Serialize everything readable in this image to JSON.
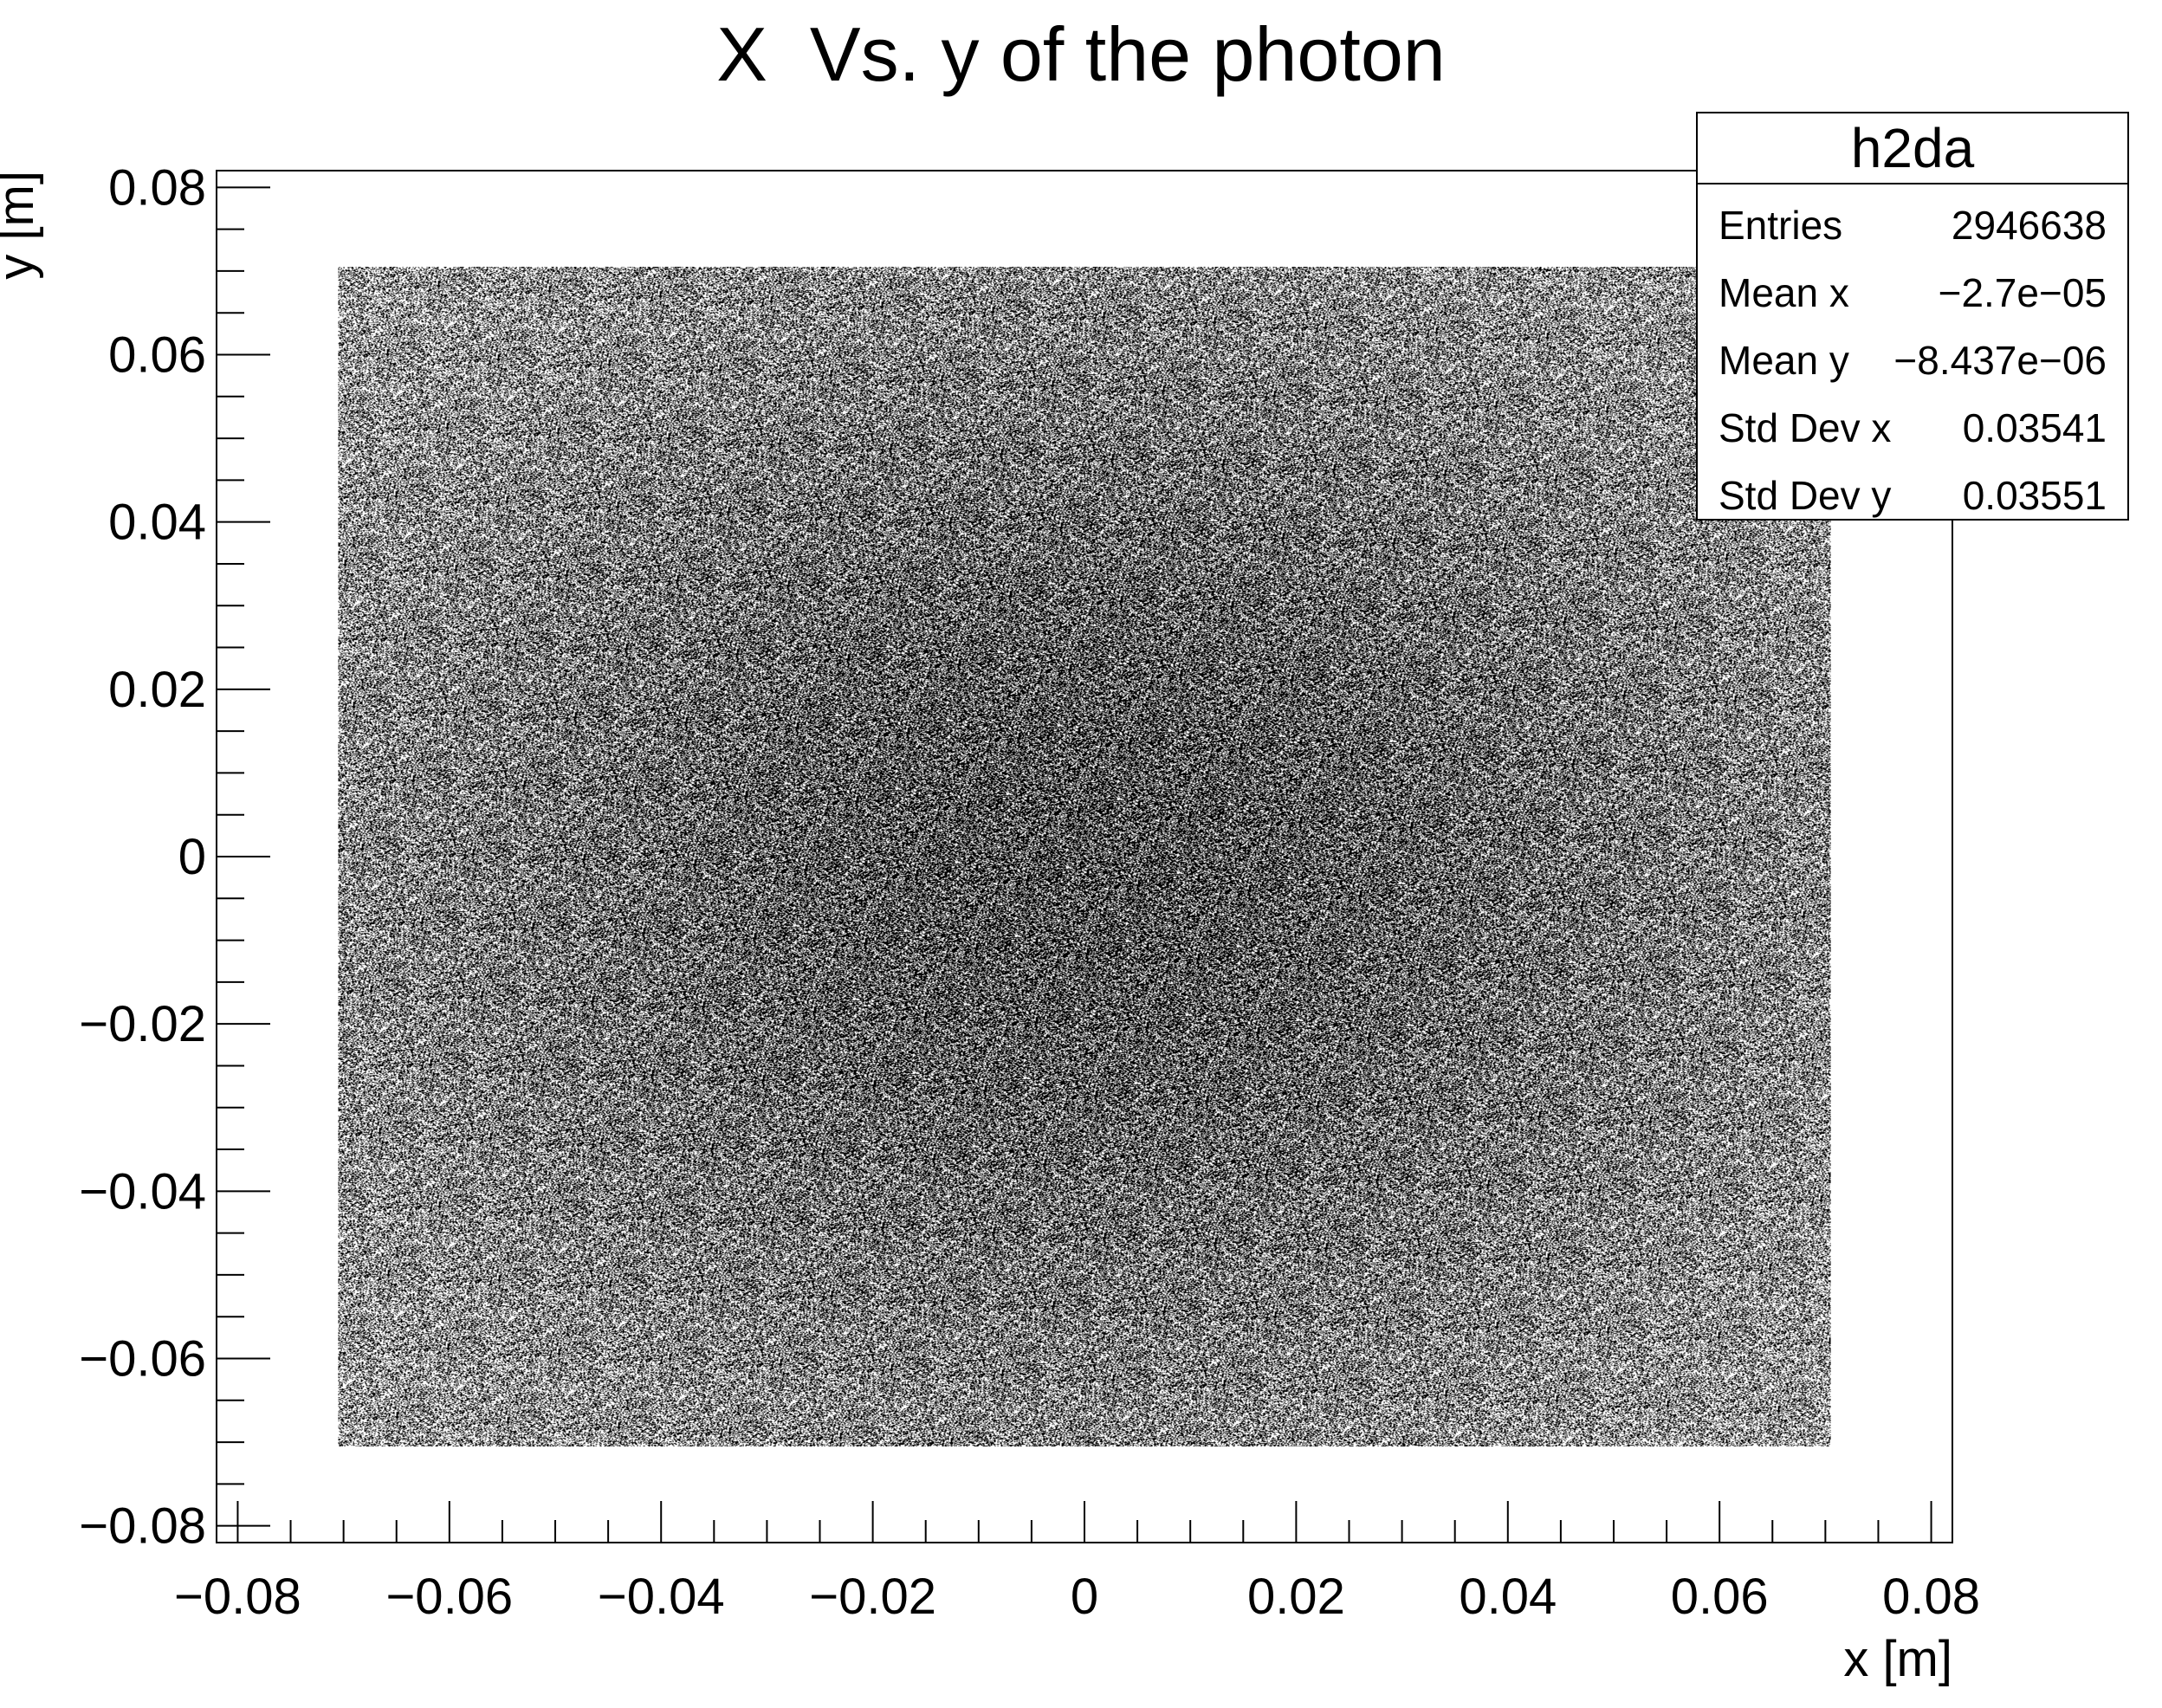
{
  "chart_data": {
    "type": "heatmap",
    "title": "X  Vs. y of the photon",
    "xlabel": "x [m]",
    "ylabel": "y [m]",
    "xlim": [
      -0.082,
      0.082
    ],
    "ylim": [
      -0.082,
      0.082
    ],
    "xticks": [
      -0.08,
      -0.06,
      -0.04,
      -0.02,
      0,
      0.02,
      0.04,
      0.06,
      0.08
    ],
    "yticks": [
      -0.08,
      -0.06,
      -0.04,
      -0.02,
      0,
      0.02,
      0.04,
      0.06,
      0.08
    ],
    "xtick_labels": [
      "−0.08",
      "−0.06",
      "−0.04",
      "−0.02",
      "0",
      "0.02",
      "0.04",
      "0.06",
      "0.08"
    ],
    "ytick_labels": [
      "−0.08",
      "−0.06",
      "−0.04",
      "−0.02",
      "0",
      "0.02",
      "0.04",
      "0.06",
      "0.08"
    ],
    "data_extent": {
      "x": [
        -0.0705,
        0.0705
      ],
      "y": [
        -0.0705,
        0.0705
      ]
    },
    "distribution": "dense uniform-like scatter, slightly denser toward center",
    "marker_color": "#000000",
    "grid": false,
    "legend": "none",
    "stats": {
      "name": "h2da",
      "rows": [
        {
          "label": "Entries",
          "value": "2946638"
        },
        {
          "label": "Mean x",
          "value": "−2.7e−05"
        },
        {
          "label": "Mean y",
          "value": "−8.437e−06"
        },
        {
          "label": "Std Dev x",
          "value": "0.03541"
        },
        {
          "label": "Std Dev y",
          "value": "0.03551"
        }
      ]
    }
  }
}
